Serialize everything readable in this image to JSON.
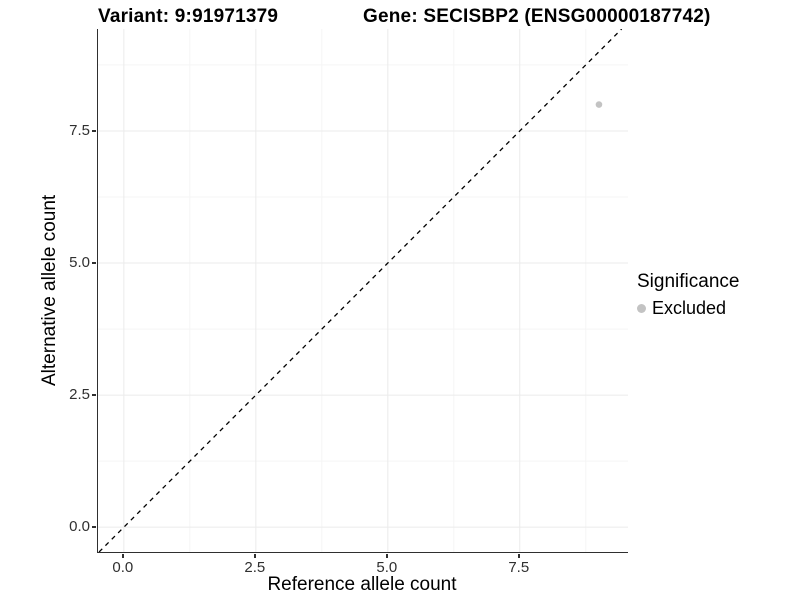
{
  "title": {
    "variant": "Variant: 9:91971379",
    "gene": "Gene: SECISBP2 (ENSG00000187742)"
  },
  "chart_data": {
    "type": "scatter",
    "xlabel": "Reference allele count",
    "ylabel": "Alternative allele count",
    "xlim": [
      -0.49,
      9.55
    ],
    "ylim": [
      -0.47,
      9.43
    ],
    "x_major_ticks": [
      0,
      2.5,
      5,
      7.5
    ],
    "x_tick_labels": [
      "0.0",
      "2.5",
      "5.0",
      "7.5"
    ],
    "y_major_ticks": [
      0,
      2.5,
      5,
      7.5
    ],
    "y_tick_labels": [
      "0.0",
      "2.5",
      "5.0",
      "7.5"
    ],
    "x_minor_ticks": [
      1.25,
      3.75,
      6.25,
      8.75
    ],
    "y_minor_ticks": [
      1.25,
      3.75,
      6.25,
      8.75
    ],
    "grid": true,
    "identity_line": {
      "slope": 1,
      "intercept": 0,
      "style": "dashed",
      "color": "#000000"
    },
    "series": [
      {
        "name": "Excluded",
        "color": "#c3c3c3",
        "points": [
          {
            "x": 9,
            "y": 8
          }
        ]
      }
    ],
    "legend": {
      "title": "Significance",
      "position": "right",
      "items": [
        {
          "label": "Excluded",
          "color": "#c3c3c3"
        }
      ]
    }
  },
  "colors": {
    "axis_line": "#2f2f2f",
    "tick_text": "#303030",
    "grid_major": "#ebebeb",
    "grid_minor": "#f5f5f5",
    "point": "#c3c3c3",
    "background": "#ffffff"
  }
}
